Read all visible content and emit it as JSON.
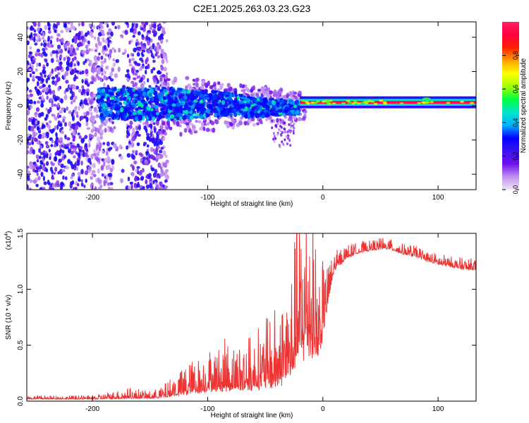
{
  "title": "C2E1.2025.263.03.23.G23",
  "chart_data": [
    {
      "type": "heatmap",
      "xlabel": "Height of straight line (km)",
      "ylabel": "Frequency (Hz)",
      "xlim": [
        -257,
        133
      ],
      "ylim": [
        -49,
        49
      ],
      "xticks": [
        -200,
        -100,
        0,
        100
      ],
      "xtick_labels": [
        "-200",
        "-100",
        "0",
        "100"
      ],
      "yticks": [
        -40,
        -20,
        0,
        20,
        40
      ],
      "ytick_labels": [
        "-40",
        "-20",
        "0",
        "20",
        "40"
      ],
      "colorbar": {
        "label": "Normalized spectral amplitude",
        "range": [
          0,
          1
        ],
        "ticks": [
          0.0,
          0.2,
          0.4,
          0.6,
          0.8
        ],
        "tick_labels": [
          "0.0",
          "0.2",
          "0.4",
          "0.6",
          "0.8"
        ],
        "colormap": [
          "#f0e2f8",
          "#c090f0",
          "#7010f0",
          "#3a14f0",
          "#0000ff",
          "#00b4ff",
          "#00e6c8",
          "#00ff40",
          "#a0ff00",
          "#ffff00",
          "#ffa000",
          "#ff2000",
          "#ff0040",
          "#ff1e64"
        ]
      },
      "regions": [
        {
          "name": "scattered noise",
          "x_range": [
            -257,
            -135
          ],
          "freq_range": [
            -49,
            49
          ],
          "amplitude": 0.15
        },
        {
          "name": "broad signal",
          "x_range": [
            -195,
            -20
          ],
          "freq_range": [
            -12,
            12
          ],
          "amplitude": 0.35
        },
        {
          "name": "narrow line",
          "x_range": [
            -20,
            133
          ],
          "freq_center": 2,
          "freq_halfwidth": 2,
          "amplitude": 0.95
        }
      ]
    },
    {
      "type": "line",
      "xlabel": "Height of straight line (km)",
      "ylabel": "SNR (10 * v/v)",
      "y_multiplier": "(x10^4)",
      "y_multiplier_base": "(x10",
      "y_multiplier_exp": "4",
      "y_multiplier_close": ")",
      "xlim": [
        -257,
        133
      ],
      "ylim": [
        0,
        1.5
      ],
      "xticks": [
        -200,
        -100,
        0,
        100
      ],
      "xtick_labels": [
        "-200",
        "-100",
        "0",
        "100"
      ],
      "yticks": [
        0,
        0.5,
        1.0,
        1.5
      ],
      "ytick_labels": [
        "0.0",
        "0.5",
        "1.0",
        "1.5"
      ],
      "color": "#ee3333",
      "series": [
        {
          "name": "SNR",
          "x": [
            -257,
            -200,
            -170,
            -150,
            -140,
            -120,
            -100,
            -80,
            -60,
            -40,
            -30,
            -20,
            -12,
            -5,
            0,
            5,
            10,
            20,
            30,
            40,
            50,
            60,
            70,
            80,
            90,
            100,
            110,
            120,
            133
          ],
          "y_base": [
            0.02,
            0.02,
            0.03,
            0.03,
            0.04,
            0.08,
            0.12,
            0.14,
            0.15,
            0.2,
            0.28,
            0.5,
            0.6,
            0.45,
            0.62,
            0.95,
            1.18,
            1.28,
            1.33,
            1.35,
            1.37,
            1.36,
            1.32,
            1.3,
            1.26,
            1.23,
            1.21,
            1.19,
            1.18
          ],
          "noise": [
            0.01,
            0.01,
            0.03,
            0.02,
            0.03,
            0.08,
            0.12,
            0.14,
            0.15,
            0.22,
            0.3,
            0.45,
            0.5,
            0.3,
            0.2,
            0.1,
            0.05,
            0.04,
            0.03,
            0.03,
            0.03,
            0.03,
            0.03,
            0.03,
            0.03,
            0.03,
            0.03,
            0.03,
            0.03
          ]
        }
      ]
    }
  ]
}
